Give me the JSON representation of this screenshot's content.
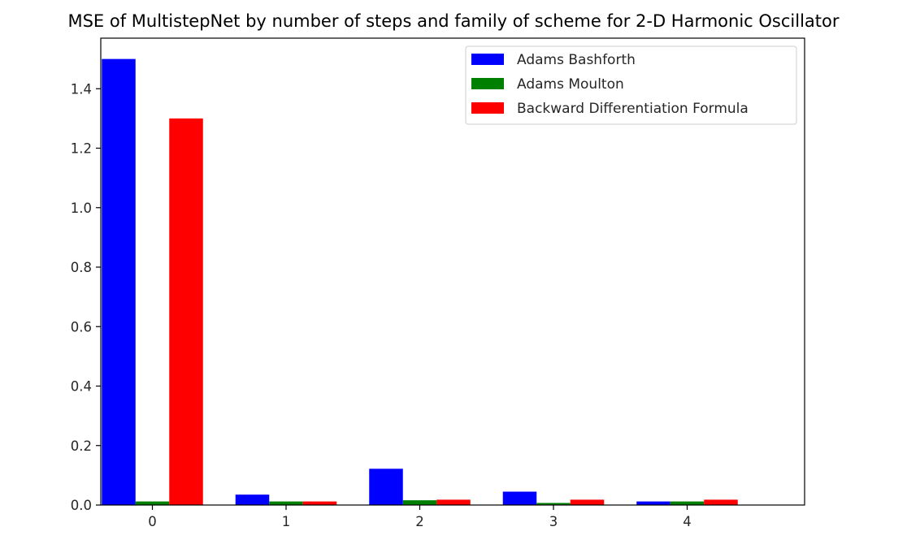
{
  "chart_data": {
    "type": "bar",
    "title": "MSE of MultistepNet by number of steps and family of scheme for 2-D Harmonic Oscillator",
    "xlabel": "",
    "ylabel": "",
    "categories": [
      "0",
      "1",
      "2",
      "3",
      "4"
    ],
    "series": [
      {
        "name": "Adams Bashforth",
        "color": "#0000ff",
        "values": [
          1.5,
          0.035,
          0.122,
          0.045,
          0.012
        ]
      },
      {
        "name": "Adams Moulton",
        "color": "#008000",
        "values": [
          0.012,
          0.012,
          0.016,
          0.007,
          0.012
        ]
      },
      {
        "name": "Backward Differentiation Formula",
        "color": "#ff0000",
        "values": [
          1.3,
          0.012,
          0.018,
          0.018,
          0.018
        ]
      }
    ],
    "ylim": [
      0,
      1.57
    ],
    "yticks": [
      "0.0",
      "0.2",
      "0.4",
      "0.6",
      "0.8",
      "1.0",
      "1.2",
      "1.4"
    ],
    "grid": false,
    "legend_position": "upper-right"
  }
}
